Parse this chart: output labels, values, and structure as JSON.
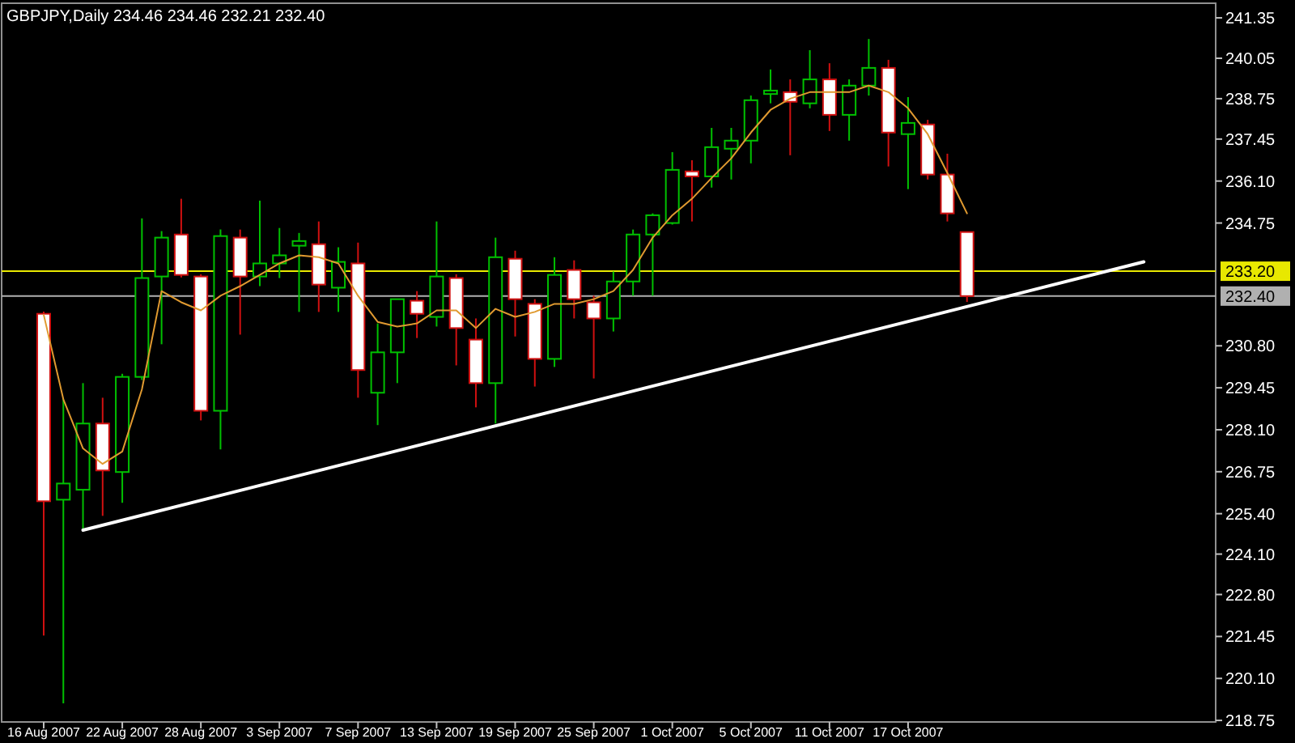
{
  "chart_data": {
    "type": "candlestick",
    "title": "GBPJPY,Daily  234.46 234.46 232.21 232.40",
    "categories": [
      "16 Aug 2007",
      null,
      null,
      null,
      "22 Aug 2007",
      null,
      null,
      null,
      "28 Aug 2007",
      null,
      null,
      null,
      "3 Sep 2007",
      null,
      null,
      null,
      "7 Sep 2007",
      null,
      null,
      null,
      "13 Sep 2007",
      null,
      null,
      null,
      "19 Sep 2007",
      null,
      null,
      null,
      "25 Sep 2007",
      null,
      null,
      null,
      "1 Oct 2007",
      null,
      null,
      null,
      "5 Oct 2007",
      null,
      null,
      null,
      "11 Oct 2007",
      null,
      null,
      null,
      "17 Oct 2007",
      null,
      null,
      null,
      null,
      null,
      null,
      null,
      null,
      null,
      null,
      null,
      null,
      null,
      null,
      null
    ],
    "ohlc": [
      [
        231.83,
        231.9,
        221.48,
        225.8
      ],
      [
        225.85,
        229.08,
        219.3,
        226.37
      ],
      [
        226.17,
        229.6,
        224.87,
        228.3
      ],
      [
        228.3,
        229.13,
        225.33,
        226.79
      ],
      [
        226.74,
        229.9,
        225.75,
        229.8
      ],
      [
        229.8,
        234.9,
        229.7,
        232.98
      ],
      [
        233.03,
        234.49,
        230.85,
        234.28
      ],
      [
        234.38,
        235.53,
        233.0,
        233.08
      ],
      [
        233.03,
        233.1,
        228.4,
        228.71
      ],
      [
        228.71,
        234.54,
        227.47,
        234.33
      ],
      [
        234.28,
        234.54,
        231.16,
        233.03
      ],
      [
        233.03,
        235.47,
        232.72,
        233.45
      ],
      [
        233.45,
        234.59,
        232.98,
        233.71
      ],
      [
        234.02,
        234.43,
        231.89,
        234.17
      ],
      [
        234.07,
        234.8,
        231.89,
        232.77
      ],
      [
        232.67,
        233.97,
        231.89,
        233.5
      ],
      [
        233.45,
        234.12,
        229.13,
        230.02
      ],
      [
        229.29,
        231.52,
        228.25,
        230.59
      ],
      [
        230.59,
        232.3,
        229.6,
        232.3
      ],
      [
        232.25,
        232.56,
        231.05,
        231.83
      ],
      [
        231.73,
        234.8,
        231.42,
        233.03
      ],
      [
        232.98,
        233.1,
        230.17,
        231.37
      ],
      [
        231.0,
        231.68,
        228.82,
        229.6
      ],
      [
        229.6,
        234.28,
        228.3,
        233.65
      ],
      [
        233.6,
        233.86,
        231.1,
        232.3
      ],
      [
        232.15,
        232.3,
        229.49,
        230.38
      ],
      [
        230.38,
        233.65,
        230.12,
        233.08
      ],
      [
        233.24,
        233.55,
        231.68,
        232.3
      ],
      [
        232.2,
        232.41,
        229.75,
        231.68
      ],
      [
        231.68,
        233.19,
        231.26,
        232.87
      ],
      [
        232.87,
        234.54,
        232.41,
        234.38
      ],
      [
        234.38,
        235.06,
        232.41,
        235.0
      ],
      [
        234.75,
        237.03,
        234.7,
        236.46
      ],
      [
        236.41,
        236.77,
        234.8,
        236.25
      ],
      [
        236.25,
        237.81,
        235.89,
        237.19
      ],
      [
        237.14,
        237.81,
        236.15,
        237.4
      ],
      [
        237.4,
        238.85,
        236.67,
        238.7
      ],
      [
        238.9,
        239.69,
        238.6,
        239.01
      ],
      [
        238.96,
        239.37,
        236.93,
        238.65
      ],
      [
        238.6,
        240.31,
        238.44,
        239.37
      ],
      [
        239.37,
        239.89,
        237.71,
        238.23
      ],
      [
        238.23,
        239.37,
        237.4,
        239.17
      ],
      [
        239.17,
        240.67,
        238.85,
        239.74
      ],
      [
        239.74,
        240.0,
        236.57,
        237.66
      ],
      [
        237.61,
        238.8,
        235.84,
        237.97
      ],
      [
        237.92,
        238.07,
        236.15,
        236.31
      ],
      [
        236.31,
        236.98,
        234.8,
        235.06
      ],
      [
        234.46,
        234.46,
        232.21,
        232.4
      ],
      null,
      null,
      null,
      null,
      null,
      null,
      null,
      null,
      null,
      null,
      null,
      null
    ],
    "colors": [
      "#ffffff",
      "#00c000",
      "#00c000",
      "#ffffff",
      "#00c000",
      "#00c000",
      "#00c000",
      "#ffffff",
      "#ffffff",
      "#00c000",
      "#ffffff",
      "#00c000",
      "#00c000",
      "#00c000",
      "#ffffff",
      "#00c000",
      "#ffffff",
      "#00c000",
      "#00c000",
      "#ffffff",
      "#00c000",
      "#ffffff",
      "#ffffff",
      "#00c000",
      "#ffffff",
      "#ffffff",
      "#00c000",
      "#ffffff",
      "#ffffff",
      "#00c000",
      "#00c000",
      "#00c000",
      "#00c000",
      "#ffffff",
      "#00c000",
      "#00c000",
      "#00c000",
      "#00c000",
      "#ffffff",
      "#00c000",
      "#ffffff",
      "#00c000",
      "#00c000",
      "#ffffff",
      "#00c000",
      "#ffffff",
      "#ffffff",
      "#ffffff",
      null,
      null,
      null,
      null,
      null,
      null,
      null,
      null,
      null,
      null,
      null,
      null
    ],
    "series": [
      {
        "type": "line",
        "color": "#e09a30",
        "values": [
          231.8,
          229.08,
          227.5,
          227.0,
          227.4,
          229.4,
          232.56,
          232.2,
          231.94,
          232.41,
          232.72,
          233.08,
          233.45,
          233.71,
          233.65,
          233.45,
          232.41,
          231.57,
          231.42,
          231.52,
          231.94,
          231.94,
          231.37,
          231.99,
          231.73,
          231.89,
          232.15,
          232.15,
          232.3,
          232.56,
          233.24,
          234.28,
          235.0,
          235.53,
          236.2,
          236.83,
          237.66,
          238.39,
          238.75,
          238.96,
          238.96,
          238.96,
          239.17,
          238.96,
          238.44,
          237.61,
          236.36,
          235.06,
          null,
          null,
          null,
          null,
          null,
          null,
          null,
          null,
          null,
          null,
          null,
          null
        ]
      },
      {
        "type": "line",
        "color": "#ffffff",
        "values": [
          null,
          null,
          224.87,
          null,
          null,
          null,
          null,
          null,
          null,
          null,
          null,
          null,
          null,
          null,
          null,
          null,
          null,
          null,
          null,
          null,
          null,
          null,
          null,
          null,
          null,
          null,
          null,
          null,
          null,
          null,
          null,
          null,
          null,
          null,
          null,
          null,
          null,
          null,
          null,
          null,
          null,
          null,
          null,
          null,
          null,
          null,
          null,
          null,
          null,
          null,
          null,
          null,
          null,
          null,
          null,
          null,
          233.5,
          null,
          null,
          null
        ]
      }
    ],
    "ref_lines": [
      {
        "axis": "y",
        "value": 233.2,
        "label": "233.20",
        "color": "#e8e800"
      },
      {
        "axis": "y",
        "value": 232.4,
        "label": "232.40",
        "color": "#b0b0b0"
      }
    ],
    "ylim": [
      218.7,
      241.82
    ],
    "yticks": [
      241.35,
      240.05,
      238.75,
      237.45,
      {
        "value": 236.1,
        "label": "236.10"
      },
      234.75,
      {
        "value": 230.8,
        "label": "230.80"
      },
      229.45,
      {
        "value": 228.1,
        "label": "228.10"
      },
      226.75,
      {
        "value": 225.4,
        "label": "225.40"
      },
      {
        "value": 224.1,
        "label": "224.10"
      },
      {
        "value": 222.8,
        "label": "222.80"
      },
      221.45,
      {
        "value": 220.1,
        "label": "220.10"
      },
      218.75
    ]
  }
}
